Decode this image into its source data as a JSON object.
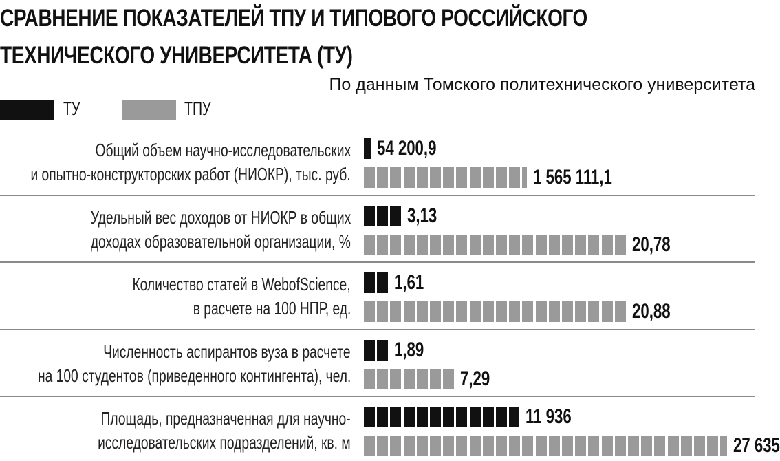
{
  "title": {
    "line1": "СРАВНЕНИЕ ПОКАЗАТЕЛЕЙ ТПУ И ТИПОВОГО РОССИЙСКОГО",
    "line2": "ТЕХНИЧЕСКОГО УНИВЕРСИТЕТА (ТУ)"
  },
  "source": "По данным Томского политехнического университета",
  "colors": {
    "tu": "#111111",
    "tpu": "#9a9a9a",
    "separator": "#8a8a8a"
  },
  "legend": [
    {
      "label": "ТУ",
      "color": "#111111"
    },
    {
      "label": "ТПУ",
      "color": "#9a9a9a"
    }
  ],
  "chart_data": {
    "type": "bar",
    "orientation": "horizontal",
    "series": [
      {
        "name": "ТУ",
        "color": "#111111"
      },
      {
        "name": "ТПУ",
        "color": "#9a9a9a"
      }
    ],
    "rows": [
      {
        "label_line1": "Общий объем научно-исследовательских",
        "label_line2": "и опытно-конструкторских работ (НИОКР), тыс. руб.",
        "tu": {
          "value": 54200.9,
          "display": "54 200,9",
          "blocks": 0.6
        },
        "tpu": {
          "value": 1565111.1,
          "display": "1 565 111,1",
          "blocks": 12.4
        }
      },
      {
        "label_line1": "Удельный вес доходов от НИОКР в общих",
        "label_line2": "доходах образовательной организации, %",
        "tu": {
          "value": 3.13,
          "display": "3,13",
          "blocks": 3
        },
        "tpu": {
          "value": 20.78,
          "display": "20,78",
          "blocks": 20
        }
      },
      {
        "label_line1": "Количество статей в WebofScience,",
        "label_line2": "в расчете на 100 НПР, ед.",
        "tu": {
          "value": 1.61,
          "display": "1,61",
          "blocks": 2
        },
        "tpu": {
          "value": 20.88,
          "display": "20,88",
          "blocks": 20
        }
      },
      {
        "label_line1": "Численность аспирантов вуза в расчете",
        "label_line2": "на 100 студентов (приведенного контингента), чел.",
        "tu": {
          "value": 1.89,
          "display": "1,89",
          "blocks": 2
        },
        "tpu": {
          "value": 7.29,
          "display": "7,29",
          "blocks": 7
        }
      },
      {
        "label_line1": "Площадь, предназначенная для научно-",
        "label_line2": "исследовательских подразделений, кв. м",
        "tu": {
          "value": 11936,
          "display": "11 936",
          "blocks": 11.9
        },
        "tpu": {
          "value": 27635,
          "display": "27 635",
          "blocks": 27.6
        }
      }
    ]
  }
}
